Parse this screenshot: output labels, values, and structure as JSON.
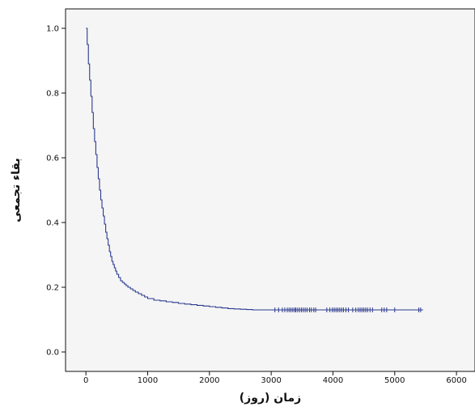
{
  "chart_data": {
    "type": "line",
    "step": true,
    "xlabel": "زمان (روز)",
    "ylabel": "بقاء تجمعی",
    "xlim": [
      -330,
      6300
    ],
    "ylim": [
      -0.06,
      1.06
    ],
    "xticks": [
      0,
      1000,
      2000,
      3000,
      4000,
      5000,
      6000
    ],
    "yticks": [
      0.0,
      0.2,
      0.4,
      0.6,
      0.8,
      1.0
    ],
    "xtick_labels": [
      "0",
      "1000",
      "2000",
      "3000",
      "4000",
      "5000",
      "6000"
    ],
    "ytick_labels": [
      "0.0",
      "0.2",
      "0.4",
      "0.6",
      "0.8",
      "1.0"
    ],
    "grid": false,
    "series": [
      {
        "x": [
          0,
          20,
          40,
          60,
          80,
          100,
          120,
          140,
          160,
          180,
          200,
          220,
          240,
          260,
          280,
          300,
          320,
          340,
          360,
          380,
          400,
          420,
          440,
          460,
          480,
          500,
          530,
          560,
          590,
          620,
          650,
          680,
          720,
          760,
          800,
          850,
          900,
          950,
          1000,
          1100,
          1200,
          1300,
          1400,
          1500,
          1600,
          1700,
          1800,
          1900,
          2000,
          2100,
          2200,
          2300,
          2400,
          2500,
          2600,
          2700,
          5400
        ],
        "y": [
          1.0,
          0.95,
          0.89,
          0.84,
          0.79,
          0.74,
          0.69,
          0.65,
          0.61,
          0.57,
          0.535,
          0.5,
          0.47,
          0.445,
          0.42,
          0.395,
          0.37,
          0.35,
          0.33,
          0.31,
          0.295,
          0.28,
          0.27,
          0.26,
          0.25,
          0.24,
          0.23,
          0.22,
          0.215,
          0.21,
          0.205,
          0.2,
          0.195,
          0.19,
          0.185,
          0.18,
          0.175,
          0.17,
          0.165,
          0.16,
          0.158,
          0.155,
          0.153,
          0.15,
          0.148,
          0.146,
          0.144,
          0.142,
          0.14,
          0.138,
          0.136,
          0.134,
          0.133,
          0.132,
          0.131,
          0.13,
          0.13
        ]
      }
    ],
    "censored": {
      "marker": "+",
      "x": [
        3060,
        3120,
        3180,
        3220,
        3260,
        3290,
        3320,
        3350,
        3380,
        3400,
        3430,
        3460,
        3490,
        3520,
        3550,
        3580,
        3620,
        3650,
        3690,
        3720,
        3900,
        3950,
        3990,
        4020,
        4050,
        4080,
        4110,
        4140,
        4170,
        4210,
        4250,
        4320,
        4370,
        4410,
        4440,
        4470,
        4500,
        4530,
        4560,
        4600,
        4640,
        4790,
        4830,
        4870,
        5000,
        5390,
        5420
      ],
      "y": 0.13
    },
    "colors": {
      "line": "#2b3a8f",
      "plot_bg": "#f5f5f5",
      "frame": "#111111"
    }
  }
}
